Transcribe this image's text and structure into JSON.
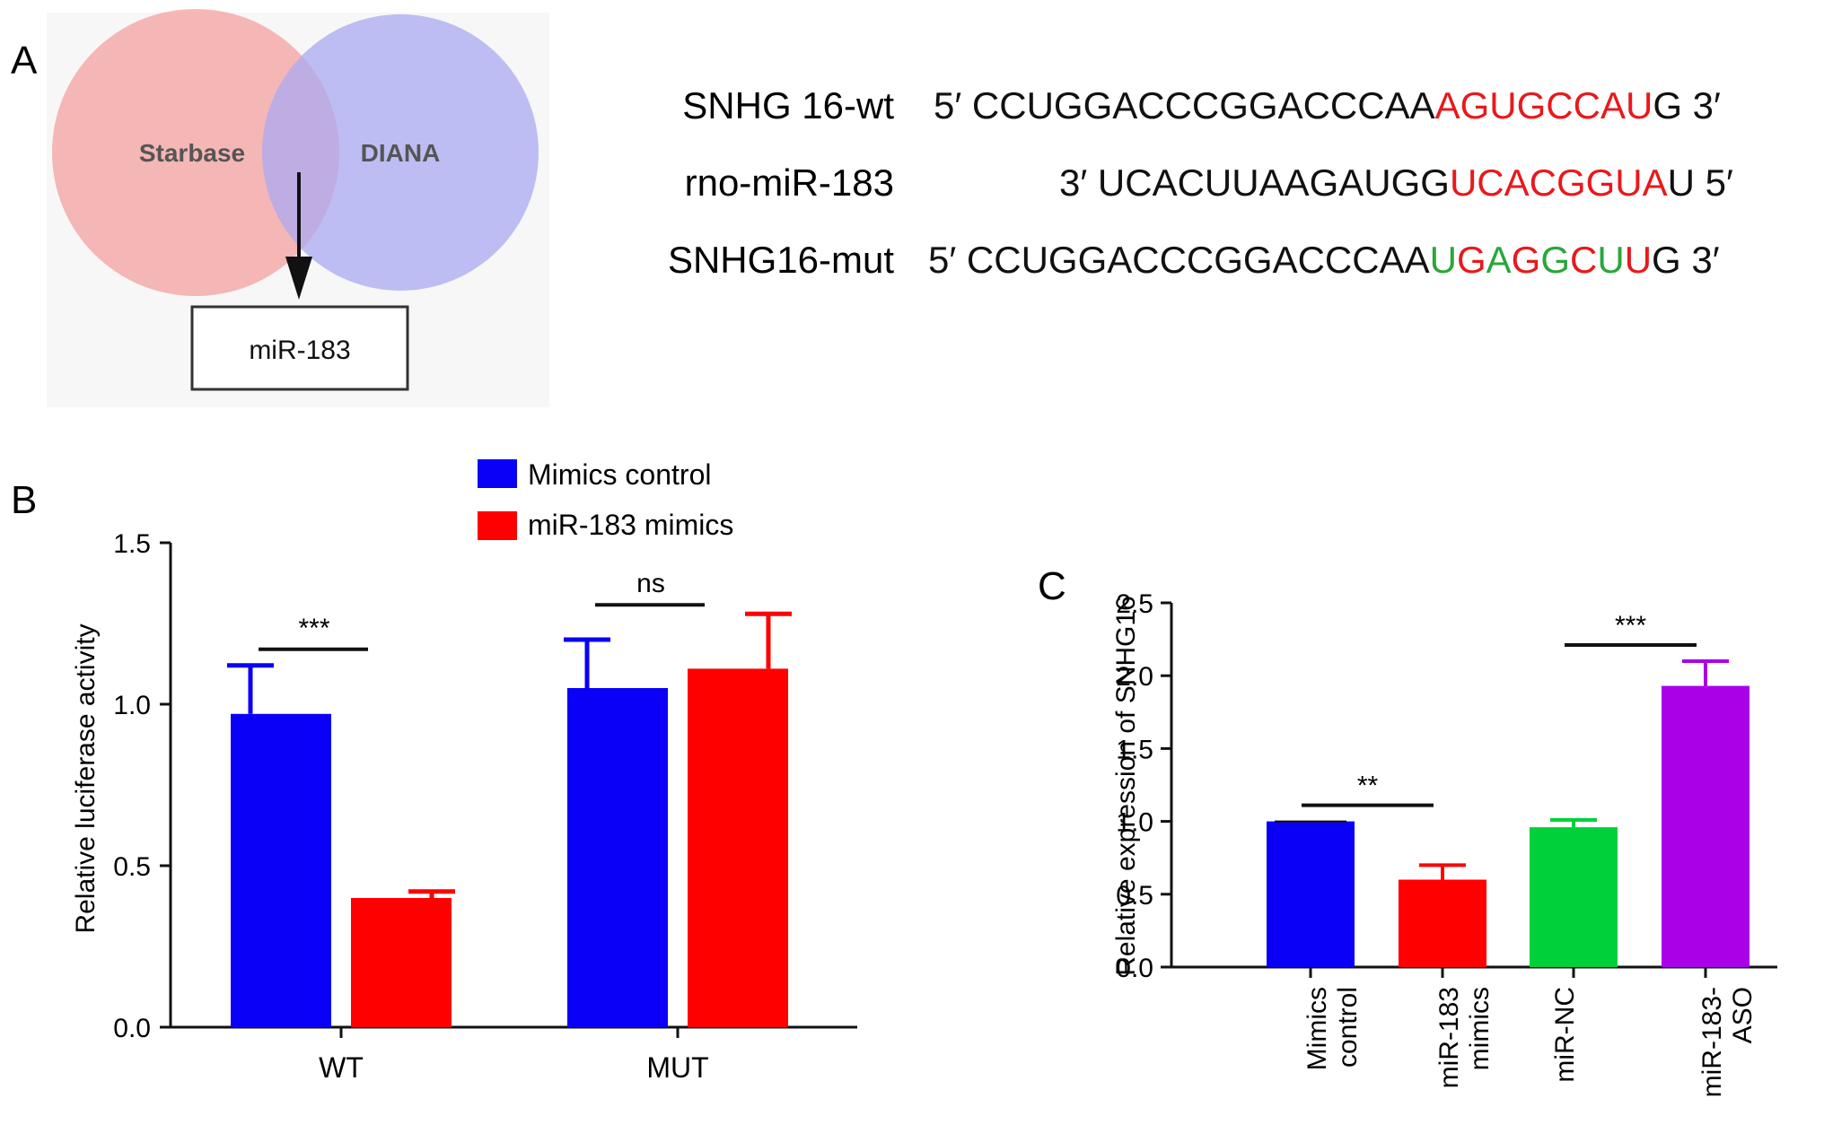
{
  "panel_labels": {
    "a": "A",
    "b": "B",
    "c": "C"
  },
  "venn": {
    "left_label": "Starbase",
    "right_label": "DIANA",
    "result_label": "miR-183",
    "left_color": "#f4a0a0",
    "right_color": "#a9a9f2"
  },
  "sequences": [
    {
      "name": "SNHG 16-wt",
      "parts": [
        {
          "text": "5′ CCUGGACCCGGACCCAA",
          "color": "#111111"
        },
        {
          "text": "AGUGCCAU",
          "color": "#e8191c"
        },
        {
          "text": "G 3′",
          "color": "#111111"
        }
      ]
    },
    {
      "name": "rno-miR-183",
      "parts": [
        {
          "text": "3′ UCACUUAAGAUGG",
          "color": "#111111"
        },
        {
          "text": "UCACGGUA",
          "color": "#e8191c"
        },
        {
          "text": "U 5′",
          "color": "#111111"
        }
      ]
    },
    {
      "name": "SNHG16-mut",
      "parts": [
        {
          "text": "5′ CCUGGACCCGGACCCAA",
          "color": "#111111"
        },
        {
          "text": "U",
          "color": "#2aa63b"
        },
        {
          "text": "G",
          "color": "#e8191c"
        },
        {
          "text": "A",
          "color": "#2aa63b"
        },
        {
          "text": "G",
          "color": "#e8191c"
        },
        {
          "text": "G",
          "color": "#2aa63b"
        },
        {
          "text": "C",
          "color": "#e8191c"
        },
        {
          "text": "U",
          "color": "#2aa63b"
        },
        {
          "text": "U",
          "color": "#e8191c"
        },
        {
          "text": "G 3′",
          "color": "#111111"
        }
      ]
    }
  ],
  "chart_data": [
    {
      "id": "B",
      "type": "bar",
      "categories": [
        "WT",
        "MUT"
      ],
      "ylabel": "Relative luciferase activity",
      "xlabel": "",
      "ylim": [
        0,
        1.5
      ],
      "yticks": [
        "0.0",
        "0.5",
        "1.0",
        "1.5"
      ],
      "legend_position": "top",
      "series": [
        {
          "name": "Mimics control",
          "color": "#0a00f5",
          "values": [
            0.97,
            1.05
          ],
          "errors": [
            0.15,
            0.15
          ]
        },
        {
          "name": "miR-183 mimics",
          "color": "#fe0000",
          "values": [
            0.4,
            1.11
          ],
          "errors": [
            0.02,
            0.17
          ]
        }
      ],
      "significance": [
        {
          "category": "WT",
          "label": "***"
        },
        {
          "category": "MUT",
          "label": "ns"
        }
      ]
    },
    {
      "id": "C",
      "type": "bar",
      "categories": [
        "Mimics\ncontrol",
        "miR-183\nmimics",
        "miR-NC",
        "miR-183-\nASO"
      ],
      "ylabel": "Relative expression of SNHG16",
      "xlabel": "",
      "ylim": [
        0,
        2.5
      ],
      "yticks": [
        "0.0",
        "0.5",
        "1.0",
        "1.5",
        "2.0",
        "2.5"
      ],
      "values": [
        1.0,
        0.6,
        0.96,
        1.93
      ],
      "errors": [
        0.0,
        0.1,
        0.05,
        0.17
      ],
      "colors": [
        "#0a00f5",
        "#fe0000",
        "#00d13a",
        "#aa00e8"
      ],
      "significance": [
        {
          "between": [
            0,
            1
          ],
          "label": "**"
        },
        {
          "between": [
            2,
            3
          ],
          "label": "***"
        }
      ]
    }
  ]
}
